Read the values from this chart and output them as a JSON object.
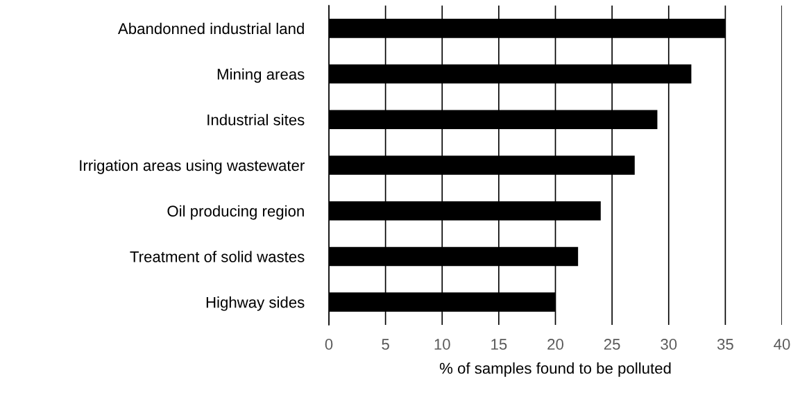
{
  "chart_data": {
    "type": "bar",
    "orientation": "horizontal",
    "xlabel": "% of samples found to be polluted",
    "categories": [
      "Abandonned industrial land",
      "Mining areas",
      "Industrial sites",
      "Irrigation areas using wastewater",
      "Oil producing region",
      "Treatment of solid wastes",
      "Highway sides"
    ],
    "values": [
      35,
      32,
      29,
      27,
      24,
      22,
      20
    ],
    "color": "#000000",
    "xlim": [
      0,
      40
    ],
    "xticks": [
      0,
      5,
      10,
      15,
      20,
      25,
      30,
      35,
      40
    ],
    "grid": "x",
    "legend": false
  }
}
